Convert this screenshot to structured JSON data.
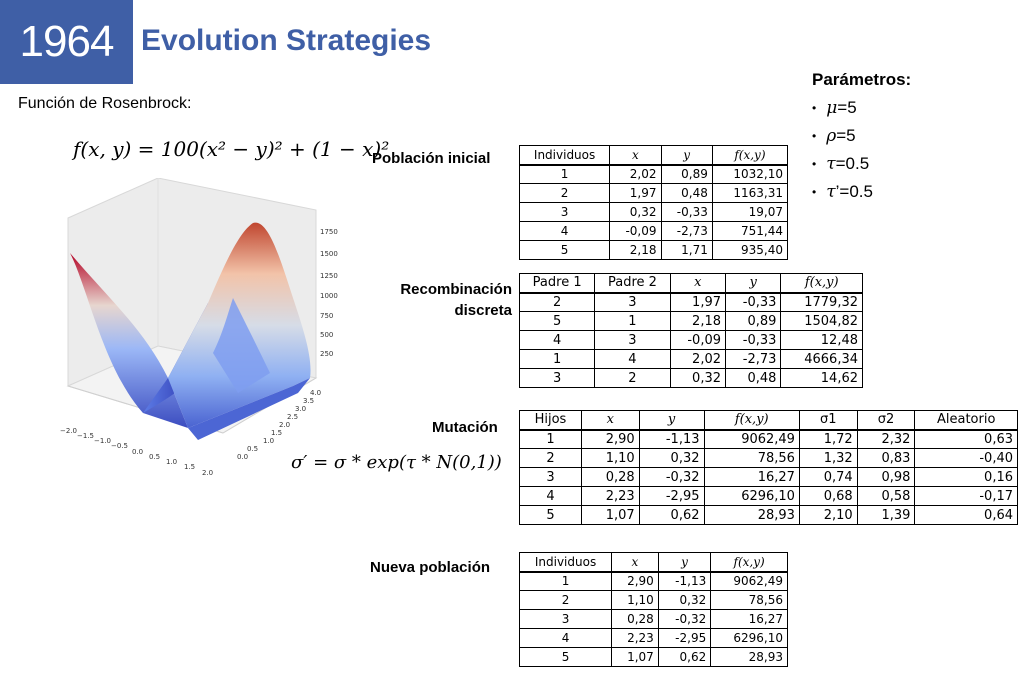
{
  "header": {
    "year": "1964",
    "title": "Evolution Strategies"
  },
  "left": {
    "subtitle": "Función de Rosenbrock:",
    "formula_rosenbrock": "f(x, y) = 100(x² − y)² + (1 − x)²",
    "formula_sigma": "σ′ = σ * exp(τ * N(0,1))",
    "plot": {
      "z_ticks": [
        "1750",
        "1500",
        "1250",
        "1000",
        "750",
        "500",
        "250"
      ],
      "y_ticks": [
        "4.0",
        "3.5",
        "3.0",
        "2.5",
        "2.0",
        "1.5",
        "1.0",
        "0.5",
        "0.0"
      ],
      "x_ticks": [
        "−2.0",
        "−1.5",
        "−1.0",
        "−0.5",
        "0.0",
        "0.5",
        "1.0",
        "1.5",
        "2.0"
      ]
    }
  },
  "params": {
    "heading": "Parámetros:",
    "items": [
      {
        "symbol": "μ",
        "value": "=5"
      },
      {
        "symbol": "ρ",
        "value": "=5"
      },
      {
        "symbol": "τ",
        "value": "=0.5"
      },
      {
        "symbol": "τ",
        "value": "’=0.5"
      }
    ]
  },
  "sections": {
    "initial": "Población inicial",
    "recomb_line1": "Recombinación",
    "recomb_line2": "discreta",
    "mutation": "Mutación",
    "new_pop": "Nueva población"
  },
  "tables": {
    "initial": {
      "headers": [
        "Individuos",
        "x",
        "y",
        "f(x,y)"
      ],
      "rows": [
        [
          "1",
          "2,02",
          "0,89",
          "1032,10"
        ],
        [
          "2",
          "1,97",
          "0,48",
          "1163,31"
        ],
        [
          "3",
          "0,32",
          "-0,33",
          "19,07"
        ],
        [
          "4",
          "-0,09",
          "-2,73",
          "751,44"
        ],
        [
          "5",
          "2,18",
          "1,71",
          "935,40"
        ]
      ]
    },
    "recomb": {
      "headers": [
        "Padre 1",
        "Padre 2",
        "x",
        "y",
        "f(x,y)"
      ],
      "rows": [
        [
          "2",
          "3",
          "1,97",
          "-0,33",
          "1779,32"
        ],
        [
          "5",
          "1",
          "2,18",
          "0,89",
          "1504,82"
        ],
        [
          "4",
          "3",
          "-0,09",
          "-0,33",
          "12,48"
        ],
        [
          "1",
          "4",
          "2,02",
          "-2,73",
          "4666,34"
        ],
        [
          "3",
          "2",
          "0,32",
          "0,48",
          "14,62"
        ]
      ]
    },
    "mutation": {
      "headers": [
        "Hijos",
        "x",
        "y",
        "f(x,y)",
        "σ1",
        "σ2",
        "Aleatorio"
      ],
      "rows": [
        [
          "1",
          "2,90",
          "-1,13",
          "9062,49",
          "1,72",
          "2,32",
          "0,63"
        ],
        [
          "2",
          "1,10",
          "0,32",
          "78,56",
          "1,32",
          "0,83",
          "-0,40"
        ],
        [
          "3",
          "0,28",
          "-0,32",
          "16,27",
          "0,74",
          "0,98",
          "0,16"
        ],
        [
          "4",
          "2,23",
          "-2,95",
          "6296,10",
          "0,68",
          "0,58",
          "-0,17"
        ],
        [
          "5",
          "1,07",
          "0,62",
          "28,93",
          "2,10",
          "1,39",
          "0,64"
        ]
      ]
    },
    "new_pop": {
      "headers": [
        "Individuos",
        "x",
        "y",
        "f(x,y)"
      ],
      "rows": [
        [
          "1",
          "2,90",
          "-1,13",
          "9062,49"
        ],
        [
          "2",
          "1,10",
          "0,32",
          "78,56"
        ],
        [
          "3",
          "0,28",
          "-0,32",
          "16,27"
        ],
        [
          "4",
          "2,23",
          "-2,95",
          "6296,10"
        ],
        [
          "5",
          "1,07",
          "0,62",
          "28,93"
        ]
      ]
    }
  },
  "colors": {
    "brand": "#3f5fa6",
    "surface_low": "#3b4cc0",
    "surface_high": "#b40426"
  }
}
